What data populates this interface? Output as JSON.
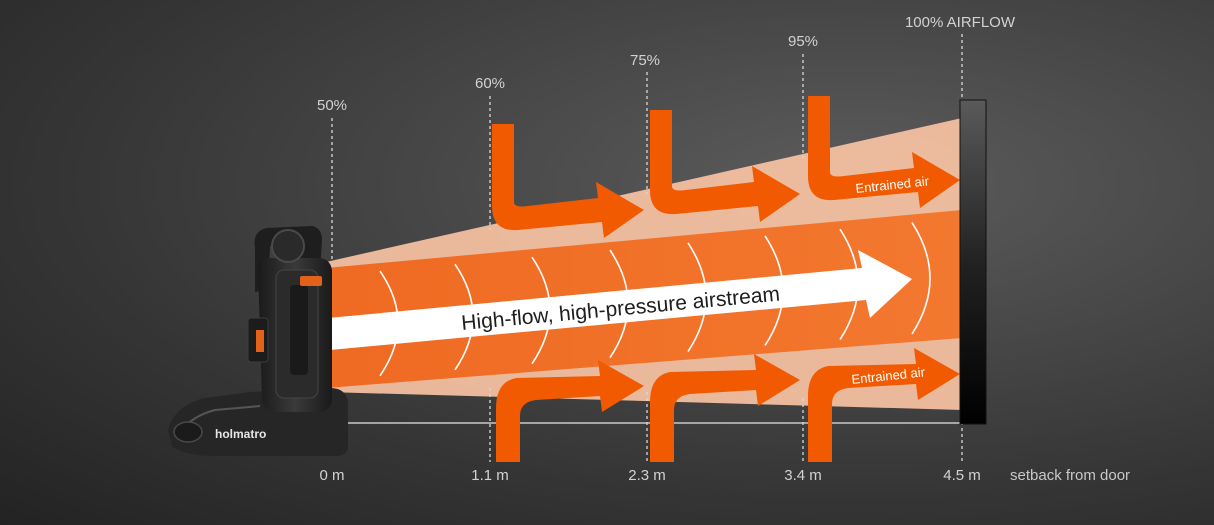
{
  "labels": {
    "airflow_percentages": [
      "50%",
      "60%",
      "75%",
      "95%",
      "100% AIRFLOW"
    ],
    "distances": [
      "0 m",
      "1.1 m",
      "2.3 m",
      "3.4 m",
      "4.5 m"
    ],
    "axis_caption": "setback from door",
    "stream_label": "High-flow, high-pressure airstream",
    "entrained_top": "Entrained air",
    "entrained_bottom": "Entrained air",
    "brand": "holmatro"
  },
  "colors": {
    "airstream_orange": "#f26a1a",
    "entrained_arrow_orange": "#f15a00",
    "outer_cone_peach": "#f8c3a3",
    "door_gradient_top": "#555555",
    "door_gradient_bottom": "#000000"
  },
  "icons": {
    "fan": "positive-pressure-ventilation-fan",
    "entrained_arrows": "curved-orange-arrow",
    "door": "door-opening-bar"
  }
}
